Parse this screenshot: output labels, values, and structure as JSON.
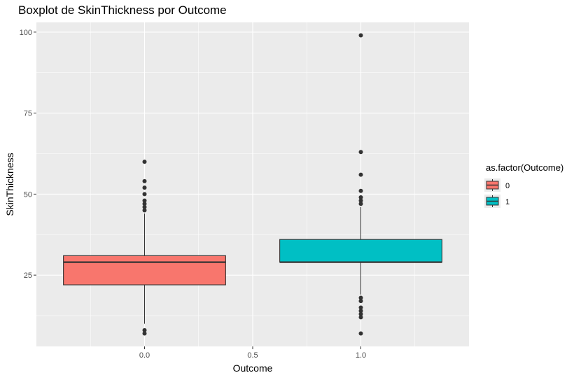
{
  "chart_data": {
    "type": "boxplot",
    "title": "Boxplot de SkinThickness por Outcome",
    "xlabel": "Outcome",
    "ylabel": "SkinThickness",
    "xlim": [
      -0.5,
      1.5
    ],
    "ylim": [
      3,
      103
    ],
    "x_ticks": [
      0.0,
      0.5,
      1.0
    ],
    "x_tick_labels": [
      "0.0",
      "0.5",
      "1.0"
    ],
    "y_ticks": [
      25,
      50,
      75,
      100
    ],
    "y_tick_labels": [
      "25",
      "50",
      "75",
      "100"
    ],
    "grid": true,
    "legend": {
      "title": "as.factor(Outcome)",
      "position": "right",
      "entries": [
        {
          "label": "0",
          "color": "#F8766D"
        },
        {
          "label": "1",
          "color": "#00BFC4"
        }
      ]
    },
    "series": [
      {
        "group": "0",
        "x": 0.0,
        "width": 0.75,
        "color": "#F8766D",
        "whisker_low": 10,
        "q1": 22,
        "median": 29,
        "q3": 31,
        "whisker_high": 44,
        "outliers": [
          7,
          8,
          45,
          46,
          47,
          48,
          50,
          52,
          54,
          60
        ]
      },
      {
        "group": "1",
        "x": 1.0,
        "width": 0.75,
        "color": "#00BFC4",
        "whisker_low": 19,
        "q1": 29,
        "median": 29,
        "q3": 36,
        "whisker_high": 46,
        "outliers": [
          7,
          12,
          13,
          14,
          15,
          17,
          18,
          47,
          48,
          49,
          51,
          56,
          63,
          99
        ]
      }
    ]
  }
}
